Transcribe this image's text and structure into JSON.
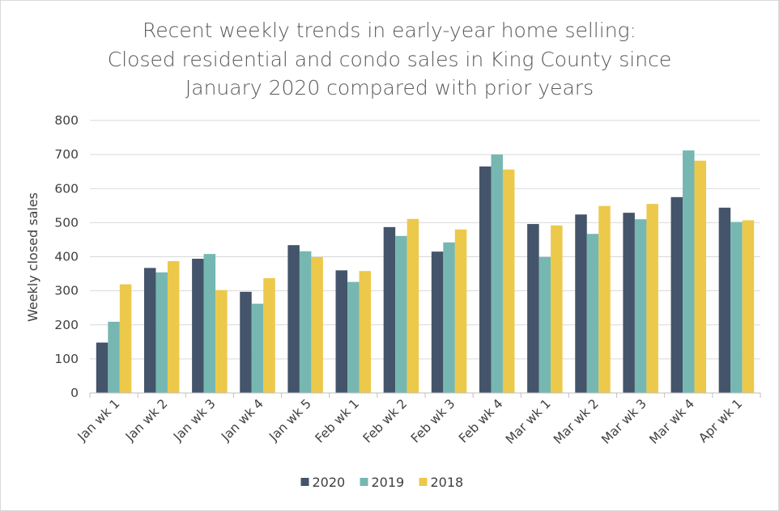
{
  "chart_data": {
    "type": "bar",
    "title_lines": [
      "Recent weekly trends in early-year home selling:",
      "Closed residential and condo sales in King County since",
      "January 2020 compared with prior years"
    ],
    "xlabel": "",
    "ylabel": "Weekly closed sales",
    "ylim": [
      0,
      800
    ],
    "yticks": [
      0,
      100,
      200,
      300,
      400,
      500,
      600,
      700,
      800
    ],
    "grid": true,
    "legend_position": "bottom",
    "categories": [
      "Jan wk 1",
      "Jan wk 2",
      "Jan wk 3",
      "Jan wk 4",
      "Jan wk 5",
      "Feb wk 1",
      "Feb wk 2",
      "Feb wk 3",
      "Feb wk 4",
      "Mar wk 1",
      "Mar wk 2",
      "Mar wk 3",
      "Mar wk 4",
      "Apr wk 1"
    ],
    "series": [
      {
        "name": "2020",
        "color": "#44546a",
        "values": [
          148,
          367,
          394,
          297,
          434,
          360,
          487,
          415,
          665,
          496,
          524,
          529,
          575,
          544
        ]
      },
      {
        "name": "2019",
        "color": "#76b7b2",
        "values": [
          209,
          354,
          408,
          262,
          416,
          326,
          461,
          442,
          700,
          399,
          467,
          510,
          712,
          502
        ]
      },
      {
        "name": "2018",
        "color": "#ecc94b",
        "values": [
          319,
          387,
          302,
          337,
          399,
          358,
          511,
          480,
          656,
          492,
          549,
          555,
          682,
          507
        ]
      }
    ]
  }
}
